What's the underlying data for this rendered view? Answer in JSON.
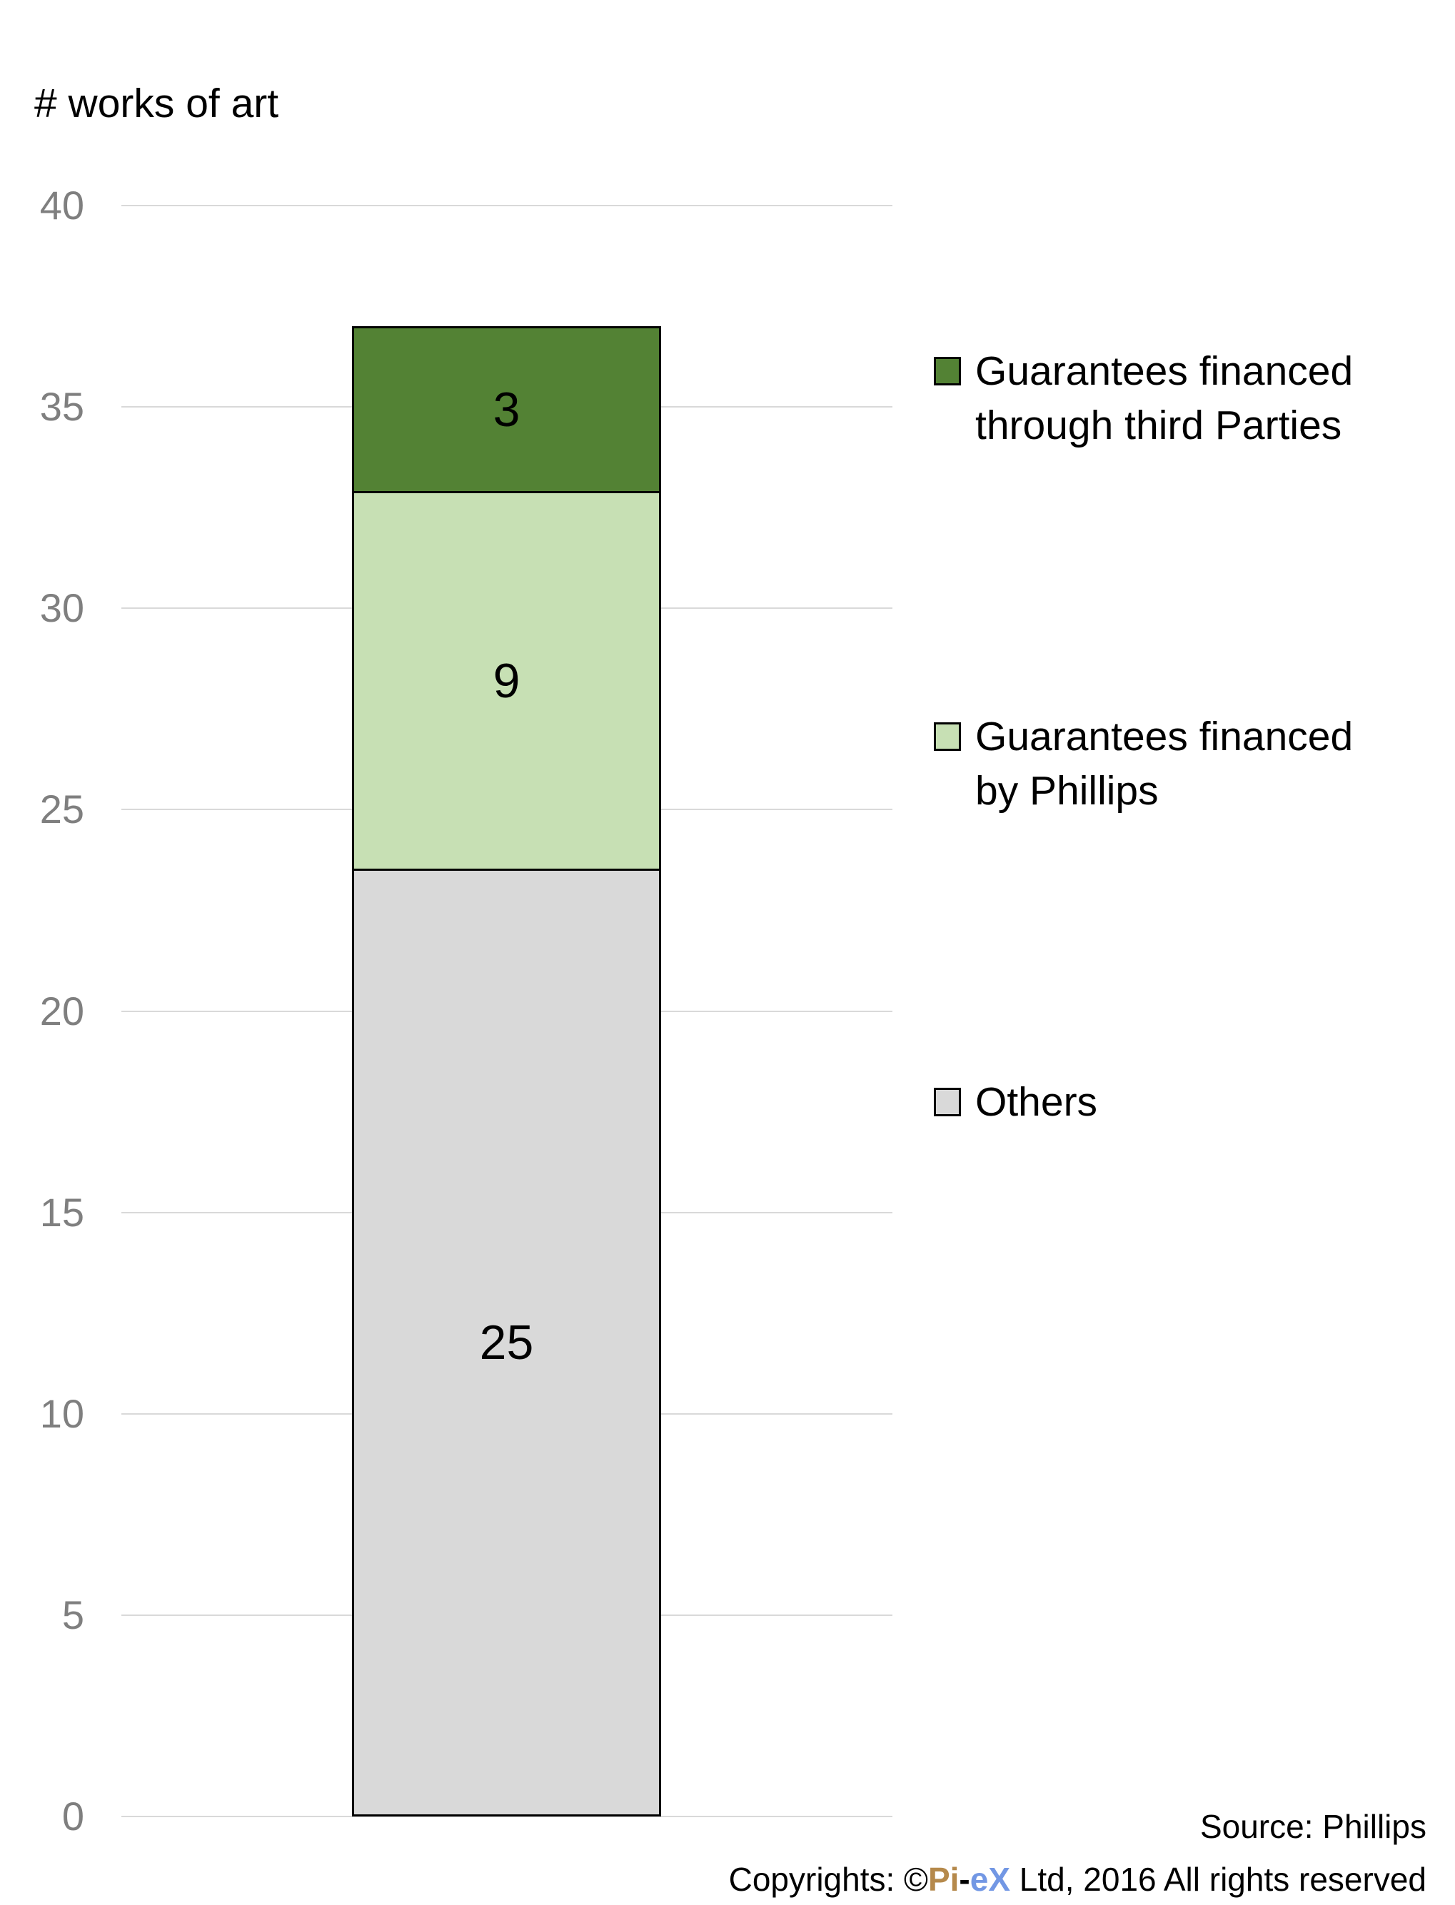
{
  "title": "# works of art",
  "chart_data": {
    "type": "bar",
    "subtype": "stacked-single-column",
    "title": "# works of art",
    "xlabel": "",
    "ylabel": "# works of art",
    "ylim": [
      0,
      40
    ],
    "ytick_step": 5,
    "grid": true,
    "legend_position": "right",
    "categories": [
      ""
    ],
    "series": [
      {
        "name": "Others",
        "value": 25,
        "label": "25",
        "color": "#d9d9d9"
      },
      {
        "name": "Guarantees financed by Phillips",
        "value": 9,
        "label": "9",
        "color": "#c7e0b4"
      },
      {
        "name": "Guarantees financed through third Parties",
        "value": 3,
        "label": "3",
        "color": "#538234"
      }
    ]
  },
  "axis": {
    "tick_labels": [
      "0",
      "5",
      "10",
      "15",
      "20",
      "25",
      "30",
      "35",
      "40"
    ],
    "tick_color": "#7f7f7f",
    "gridline_color": "#d9d9d9"
  },
  "legend": {
    "items": [
      {
        "lines": [
          "Guarantees financed",
          "through third Parties"
        ],
        "color": "#538234"
      },
      {
        "lines": [
          "Guarantees financed",
          "by Phillips"
        ],
        "color": "#c7e0b4"
      },
      {
        "lines": [
          "Others"
        ],
        "color": "#d9d9d9"
      }
    ]
  },
  "footer": {
    "source": "Source: Phillips",
    "copyright_prefix": "Copyrights: ©",
    "brand_gold": "Pi",
    "brand_dash": "-",
    "brand_blue": "eX",
    "copyright_suffix": " Ltd, 2016 All rights reserved",
    "brand_gold_color": "#b5894b",
    "brand_blue_color": "#7297e4"
  },
  "colors": {
    "segment_border": "#000000",
    "value_label": "#000000"
  }
}
